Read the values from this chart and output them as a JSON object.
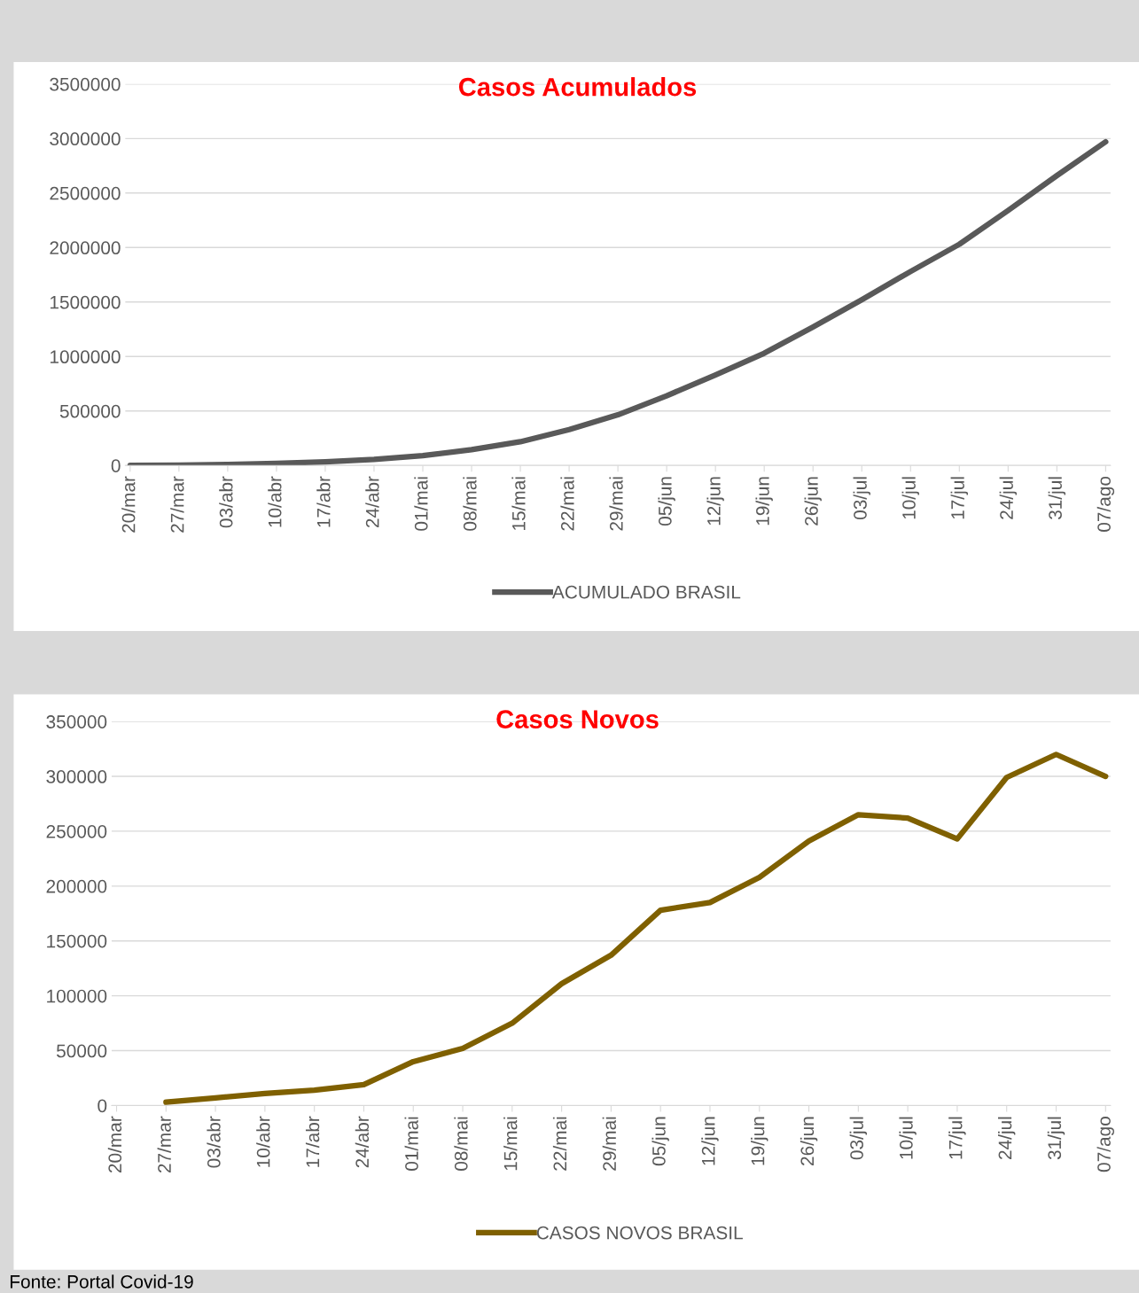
{
  "chart_data": [
    {
      "type": "line",
      "title": "Casos Acumulados",
      "categories": [
        "20/mar",
        "27/mar",
        "03/abr",
        "10/abr",
        "17/abr",
        "24/abr",
        "01/mai",
        "08/mai",
        "15/mai",
        "22/mai",
        "29/mai",
        "05/jun",
        "12/jun",
        "19/jun",
        "26/jun",
        "03/jul",
        "10/jul",
        "17/jul",
        "24/jul",
        "31/jul",
        "07/ago"
      ],
      "series": [
        {
          "name": "ACUMULADO BRASIL",
          "color": "#595959",
          "values": [
            1000,
            3000,
            10000,
            20000,
            33000,
            55000,
            90000,
            145000,
            218000,
            330000,
            465000,
            640000,
            830000,
            1030000,
            1270000,
            1520000,
            1780000,
            2030000,
            2340000,
            2660000,
            2970000
          ]
        }
      ],
      "ylim": [
        0,
        3500000
      ],
      "yticks": [
        0,
        500000,
        1000000,
        1500000,
        2000000,
        2500000,
        3000000,
        3500000
      ],
      "grid": "y",
      "legend": "bottom",
      "marker": "none",
      "line_style": "solid"
    },
    {
      "type": "line",
      "title": "Casos Novos",
      "categories": [
        "20/mar",
        "27/mar",
        "03/abr",
        "10/abr",
        "17/abr",
        "24/abr",
        "01/mai",
        "08/mai",
        "15/mai",
        "22/mai",
        "29/mai",
        "05/jun",
        "12/jun",
        "19/jun",
        "26/jun",
        "03/jul",
        "10/jul",
        "17/jul",
        "24/jul",
        "31/jul",
        "07/ago"
      ],
      "series": [
        {
          "name": "CASOS NOVOS BRASIL",
          "color": "#7f6000",
          "values": [
            null,
            3000,
            7000,
            11000,
            14000,
            19000,
            40000,
            52000,
            75000,
            111000,
            137000,
            178000,
            185000,
            208000,
            241000,
            265000,
            262000,
            243000,
            299000,
            320000,
            300000
          ]
        }
      ],
      "ylim": [
        0,
        350000
      ],
      "yticks": [
        0,
        50000,
        100000,
        150000,
        200000,
        250000,
        300000,
        350000
      ],
      "grid": "y",
      "legend": "bottom",
      "marker": "none",
      "line_style": "solid",
      "annotations": [
        "Fonte: Portal Covid-19"
      ]
    }
  ]
}
